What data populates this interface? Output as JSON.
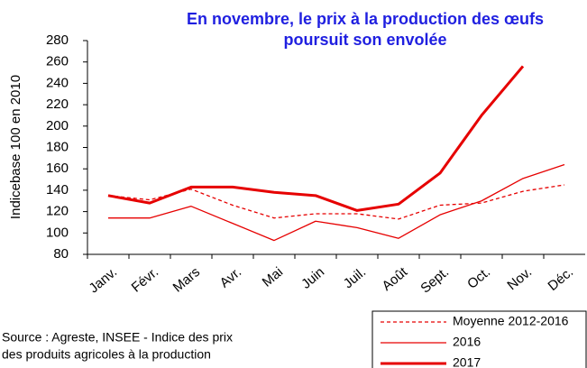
{
  "chart_data": {
    "type": "line",
    "title": [
      "En novembre, le prix à la production des œufs",
      "poursuit son envolée"
    ],
    "ylabel": "Indicebase 100 en 2010",
    "source": [
      "Source : Agreste, INSEE - Indice des prix",
      "des produits agricoles à la production"
    ],
    "categories": [
      "Janv.",
      "Févr.",
      "Mars",
      "Avr.",
      "Mai",
      "Juin",
      "Juil.",
      "Août",
      "Sept.",
      "Oct.",
      "Nov.",
      "Déc."
    ],
    "series": [
      {
        "name": "Moyenne 2012-2016",
        "color": "#e60000",
        "dashed": true,
        "thick": false,
        "values": [
          135,
          131,
          141,
          126,
          114,
          118,
          118,
          113,
          126,
          128,
          139,
          145
        ]
      },
      {
        "name": "2016",
        "color": "#e60000",
        "dashed": false,
        "thick": false,
        "values": [
          114,
          114,
          125,
          109,
          93,
          111,
          105,
          95,
          117,
          130,
          151,
          164
        ]
      },
      {
        "name": "2017",
        "color": "#e60000",
        "dashed": false,
        "thick": true,
        "values": [
          135,
          128,
          143,
          143,
          138,
          135,
          121,
          127,
          156,
          210,
          256,
          null
        ]
      }
    ],
    "ylim": [
      80,
      280
    ],
    "yticks": [
      80,
      100,
      120,
      140,
      160,
      180,
      200,
      220,
      240,
      260,
      280
    ],
    "title_color": "#1f1fe0"
  }
}
